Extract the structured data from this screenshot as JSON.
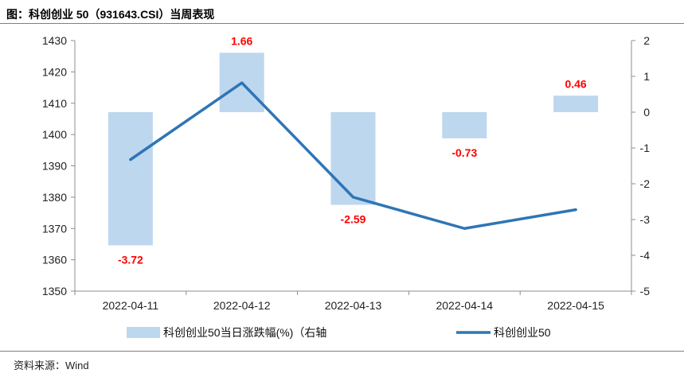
{
  "header": {
    "title": "图：科创创业 50（931643.CSI）当周表现"
  },
  "footer": {
    "source": "资料来源：Wind"
  },
  "colors": {
    "bar": "#bdd7ee",
    "line": "#2e75b6",
    "label": "#ff0000"
  },
  "chart_data": {
    "type": "bar+line",
    "categories": [
      "2022-04-11",
      "2022-04-12",
      "2022-04-13",
      "2022-04-14",
      "2022-04-15"
    ],
    "series": [
      {
        "name": "科创创业50当日涨跌幅(%)（右轴",
        "type": "bar",
        "axis": "right",
        "values": [
          -3.72,
          1.66,
          -2.59,
          -0.73,
          0.46
        ],
        "labels": [
          "-3.72",
          "1.66",
          "-2.59",
          "-0.73",
          "0.46"
        ]
      },
      {
        "name": "科创创业50",
        "type": "line",
        "axis": "left",
        "values": [
          1392,
          1416.5,
          1380,
          1370,
          1376
        ]
      }
    ],
    "y_left": {
      "min": 1350,
      "max": 1430,
      "ticks": [
        "1430",
        "1420",
        "1410",
        "1400",
        "1390",
        "1380",
        "1370",
        "1360",
        "1350"
      ]
    },
    "y_right": {
      "min": -5,
      "max": 2,
      "ticks": [
        "2",
        "1",
        "0",
        "-1",
        "-2",
        "-3",
        "-4",
        "-5"
      ]
    },
    "grid": false,
    "legend": "bottom"
  }
}
